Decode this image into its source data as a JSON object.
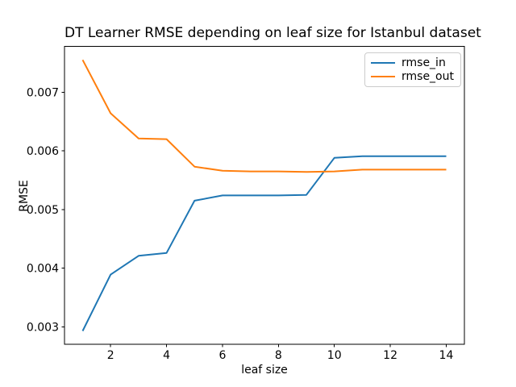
{
  "chart_data": {
    "type": "line",
    "title": "DT Learner RMSE depending on leaf size for Istanbul dataset",
    "xlabel": "leaf size",
    "ylabel": "RMSE",
    "x": [
      1,
      2,
      3,
      4,
      5,
      6,
      7,
      8,
      9,
      10,
      11,
      12,
      13,
      14
    ],
    "series": [
      {
        "name": "rmse_in",
        "color": "#1f77b4",
        "values": [
          0.00293,
          0.00389,
          0.00421,
          0.00426,
          0.00515,
          0.00524,
          0.00524,
          0.00524,
          0.00525,
          0.00588,
          0.00591,
          0.00591,
          0.00591,
          0.00591
        ]
      },
      {
        "name": "rmse_out",
        "color": "#ff7f0e",
        "values": [
          0.00755,
          0.00664,
          0.00621,
          0.0062,
          0.00573,
          0.00566,
          0.00565,
          0.00565,
          0.00564,
          0.00565,
          0.00568,
          0.00568,
          0.00568,
          0.00568
        ]
      }
    ],
    "xlim": [
      0.35,
      14.65
    ],
    "ylim": [
      0.0027,
      0.00778
    ],
    "x_ticks": [
      2,
      4,
      6,
      8,
      10,
      12,
      14
    ],
    "x_tick_labels": [
      "2",
      "4",
      "6",
      "8",
      "10",
      "12",
      "14"
    ],
    "y_ticks": [
      0.003,
      0.004,
      0.005,
      0.006,
      0.007
    ],
    "y_tick_labels": [
      "0.003",
      "0.004",
      "0.005",
      "0.006",
      "0.007"
    ],
    "grid": false,
    "legend_position": "upper right",
    "legend_entries": [
      "rmse_in",
      "rmse_out"
    ],
    "colors": {
      "background": "#ffffff",
      "spine": "#000000",
      "text": "#000000",
      "legend_border": "#cccccc"
    }
  }
}
